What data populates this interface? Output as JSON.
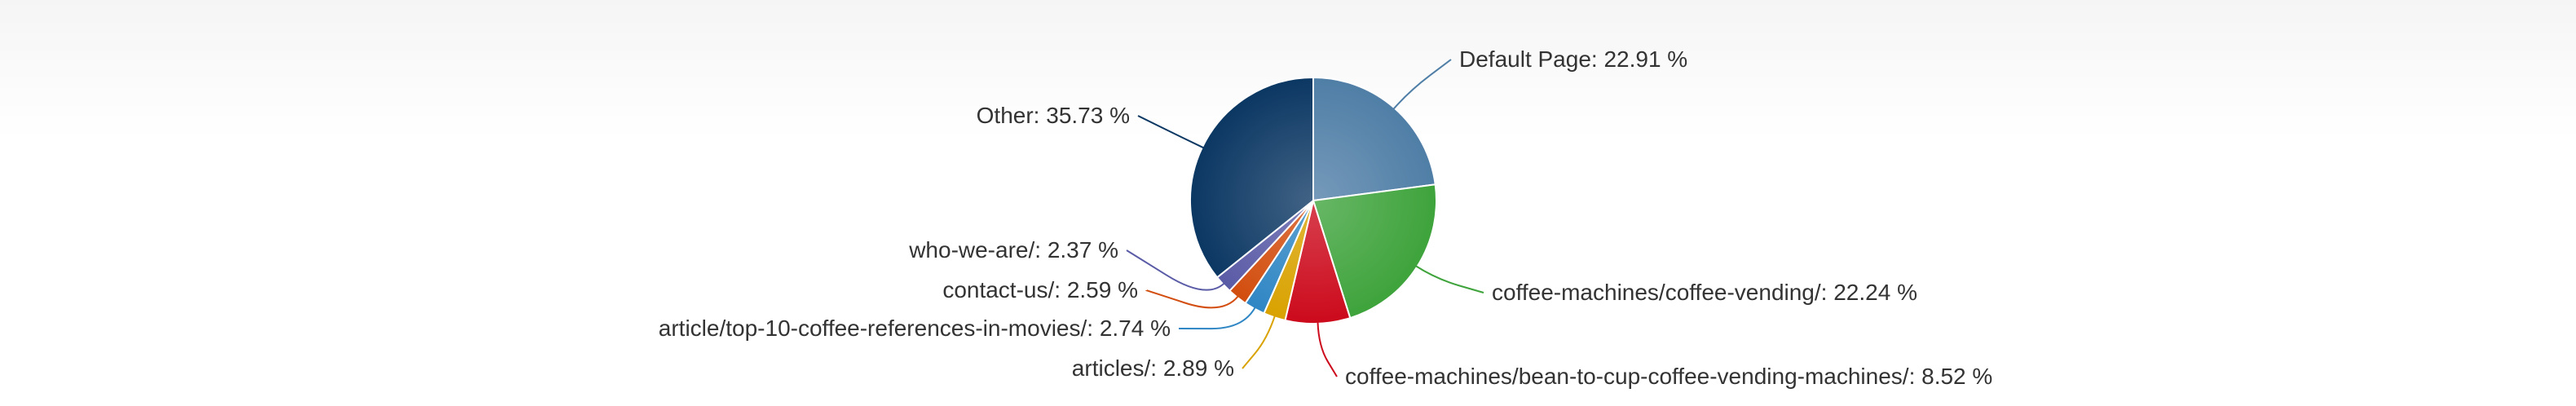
{
  "chart_data": {
    "type": "pie",
    "title": "",
    "slices": [
      {
        "label": "Default Page: 22.91 %",
        "value": 22.91,
        "color": "#4f7ea6"
      },
      {
        "label": "coffee-machines/coffee-vending/: 22.24 %",
        "value": 22.24,
        "color": "#3ea33b"
      },
      {
        "label": "coffee-machines/bean-to-cup-coffee-vending-machines/: 8.52 %",
        "value": 8.52,
        "color": "#cc0a1c"
      },
      {
        "label": "articles/: 2.89 %",
        "value": 2.89,
        "color": "#d9a200"
      },
      {
        "label": "article/top-10-coffee-references-in-movies/: 2.74 %",
        "value": 2.74,
        "color": "#2f86c4"
      },
      {
        "label": "contact-us/: 2.59 %",
        "value": 2.59,
        "color": "#d24d0e"
      },
      {
        "label": "who-we-are/: 2.37 %",
        "value": 2.37,
        "color": "#5a5ba6"
      },
      {
        "label": "Other: 35.73 %",
        "value": 35.73,
        "color": "#0b3763"
      }
    ]
  }
}
